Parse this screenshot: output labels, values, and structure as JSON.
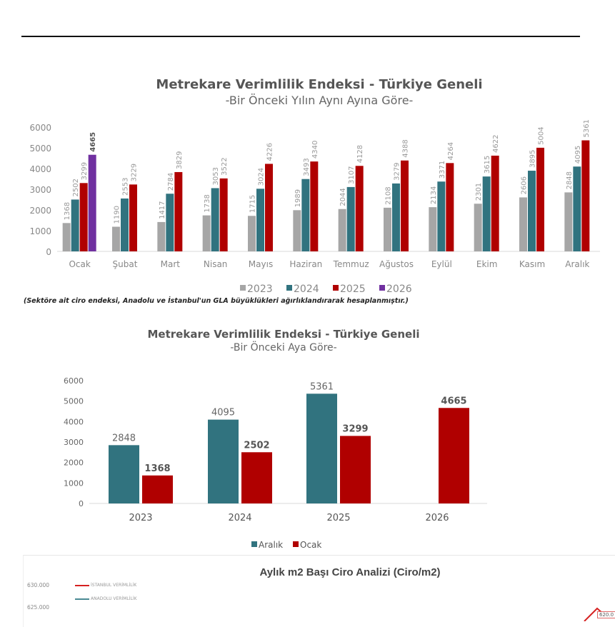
{
  "chart_data": [
    {
      "type": "bar",
      "title": "Metrekare Verimlilik Endeksi - Türkiye Geneli",
      "subtitle": "-Bir Önceki Yılın Aynı Ayına Göre-",
      "categories": [
        "Ocak",
        "Şubat",
        "Mart",
        "Nisan",
        "Mayıs",
        "Haziran",
        "Temmuz",
        "Ağustos",
        "Eylül",
        "Ekim",
        "Kasım",
        "Aralık"
      ],
      "series": [
        {
          "name": "2023",
          "color": "#a6a6a6",
          "values": [
            1368,
            1190,
            1417,
            1738,
            1715,
            1989,
            2044,
            2108,
            2134,
            2301,
            2606,
            2848
          ]
        },
        {
          "name": "2024",
          "color": "#31737f",
          "values": [
            2502,
            2553,
            2784,
            3053,
            3024,
            3493,
            3107,
            3279,
            3371,
            3615,
            3895,
            4095
          ]
        },
        {
          "name": "2025",
          "color": "#b00000",
          "values": [
            3299,
            3229,
            3829,
            3522,
            4226,
            4340,
            4128,
            4388,
            4264,
            4622,
            5004,
            5361
          ]
        },
        {
          "name": "2026",
          "color": "#7030a0",
          "values": [
            4665,
            null,
            null,
            null,
            null,
            null,
            null,
            null,
            null,
            null,
            null,
            null
          ]
        }
      ],
      "yticks": [
        "0",
        "1000",
        "2000",
        "3000",
        "4000",
        "5000",
        "6000"
      ],
      "ylim": [
        0,
        6000
      ],
      "legend": "bottom",
      "footnote": "(Sektöre ait ciro endeksi, Anadolu ve İstanbul'un GLA büyüklükleri ağırlıklandırarak hesaplanmıştır.)"
    },
    {
      "type": "bar",
      "title": "Metrekare Verimlilik Endeksi - Türkiye Geneli",
      "subtitle": "-Bir Önceki Aya Göre-",
      "categories": [
        "2023",
        "2024",
        "2025",
        "2026"
      ],
      "series": [
        {
          "name": "Aralık",
          "color": "#31737f",
          "values": [
            2848,
            4095,
            5361,
            null
          ]
        },
        {
          "name": "Ocak",
          "color": "#b00000",
          "values": [
            1368,
            2502,
            3299,
            4665
          ]
        }
      ],
      "yticks": [
        "0",
        "1000",
        "2000",
        "3000",
        "4000",
        "5000",
        "6000"
      ],
      "ylim": [
        0,
        6000
      ],
      "legend": "bottom"
    },
    {
      "type": "line",
      "title": "Aylık m2 Başı Ciro Analizi (Ciro/m2)",
      "yticks": [
        "630.000",
        "625.000"
      ],
      "legend_entries": [
        {
          "name": "İSTANBUL VERİMLİLİK",
          "color": "#d62020"
        },
        {
          "name": "ANADOLU VERİMLİLİK",
          "color": "#4a8a94"
        }
      ],
      "visible_label": "620.0"
    }
  ]
}
